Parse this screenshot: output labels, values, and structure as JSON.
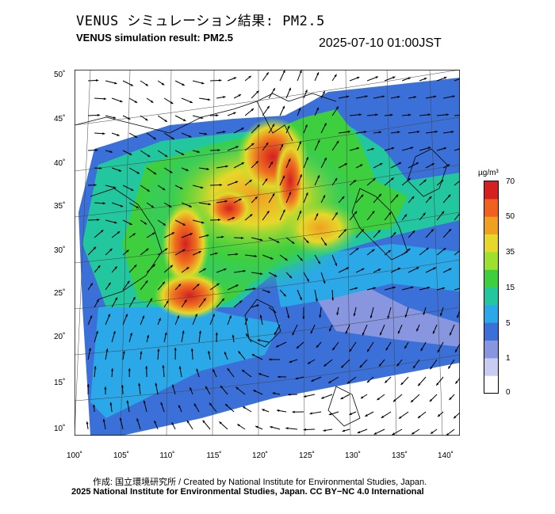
{
  "title_jp": "VENUS シミュレーション結果: PM2.5",
  "title_en": "VENUS simulation result: PM2.5",
  "timestamp": "2025-07-10 01:00JST",
  "map": {
    "lon_ticks": [
      "100˚",
      "105˚",
      "110˚",
      "115˚",
      "120˚",
      "125˚",
      "130˚",
      "135˚",
      "140˚"
    ],
    "lat_ticks": [
      "50˚",
      "45˚",
      "40˚",
      "35˚",
      "30˚",
      "25˚",
      "20˚",
      "15˚",
      "10˚"
    ]
  },
  "colorbar": {
    "unit": "µg/m³",
    "tick_labels": [
      "70",
      "50",
      "35",
      "15",
      "5",
      "1",
      "0"
    ],
    "colors": [
      "#d42020",
      "#f06020",
      "#f0a020",
      "#e6d82a",
      "#9ee030",
      "#3ecf3e",
      "#22c7a0",
      "#2aa8e8",
      "#3a70d8",
      "#8896e0",
      "#c8ccf0",
      "#ffffff"
    ]
  },
  "credit": {
    "line1": "作成: 国立環境研究所 / Created by National Institute for Environmental Studies, Japan.",
    "line2": "2025 National Institute for Environmental Studies, Japan. CC BY−NC 4.0 International"
  }
}
